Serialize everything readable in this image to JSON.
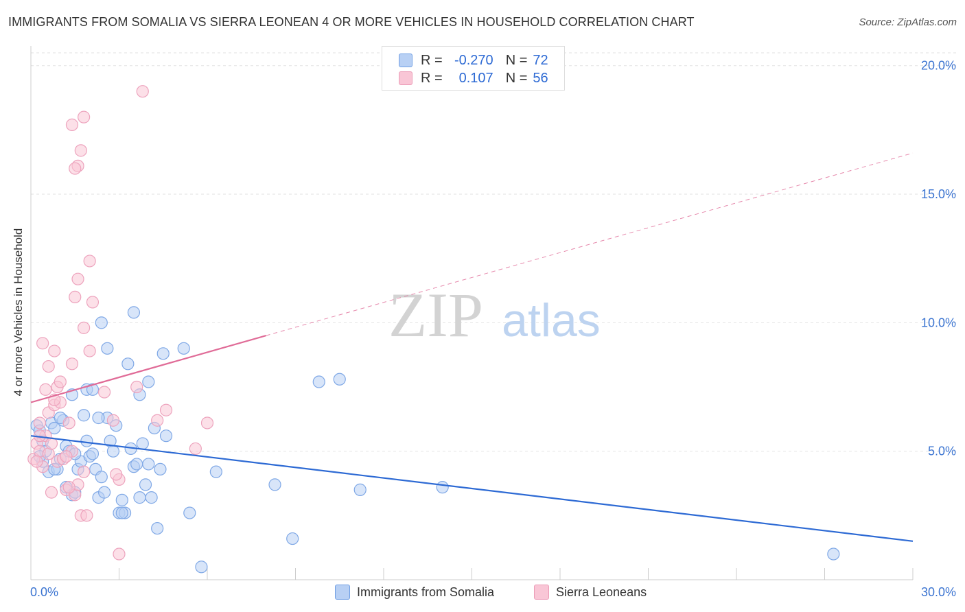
{
  "title": "IMMIGRANTS FROM SOMALIA VS SIERRA LEONEAN 4 OR MORE VEHICLES IN HOUSEHOLD CORRELATION CHART",
  "source": "Source: ZipAtlas.com",
  "watermark": {
    "zip": "ZIP",
    "atlas": "atlas"
  },
  "colors": {
    "blue": "#2d6ad4",
    "pink": "#e06b97",
    "blue_fill": "#b8d0f4",
    "pink_fill": "#f9c6d6",
    "grid": "#e2e2e2",
    "tick_label": "#3b74d1"
  },
  "legend": {
    "r_label": "R =",
    "n_label": "N =",
    "series1": {
      "r": "-0.270",
      "n": "72"
    },
    "series2": {
      "r": "0.107",
      "n": "56"
    }
  },
  "chart_data": {
    "type": "scatter",
    "xlabel": "",
    "ylabel": "4 or more Vehicles in Household",
    "xlim": [
      0,
      30
    ],
    "ylim": [
      0,
      20.5
    ],
    "x_tick_labels": [
      "0.0%",
      "30.0%"
    ],
    "y_ticks": [
      5,
      10,
      15,
      20
    ],
    "y_tick_labels": [
      "5.0%",
      "10.0%",
      "15.0%",
      "20.0%"
    ],
    "series": [
      {
        "name": "Immigrants from Somalia",
        "color": "#2d6ad4",
        "r": -0.27,
        "n": 72,
        "trend": {
          "x0": 0,
          "y0": 5.6,
          "x1": 30,
          "y1": 1.5,
          "style": "solid"
        },
        "points": [
          [
            0.2,
            6.0
          ],
          [
            0.3,
            5.8
          ],
          [
            0.4,
            5.4
          ],
          [
            0.5,
            5.0
          ],
          [
            0.4,
            4.6
          ],
          [
            0.3,
            4.8
          ],
          [
            0.6,
            4.2
          ],
          [
            0.7,
            6.1
          ],
          [
            0.8,
            5.9
          ],
          [
            0.9,
            4.3
          ],
          [
            1.0,
            4.7
          ],
          [
            1.1,
            6.2
          ],
          [
            1.2,
            5.2
          ],
          [
            1.0,
            6.3
          ],
          [
            1.3,
            5.0
          ],
          [
            1.4,
            3.3
          ],
          [
            1.5,
            3.4
          ],
          [
            1.6,
            4.3
          ],
          [
            1.7,
            4.6
          ],
          [
            1.8,
            6.4
          ],
          [
            1.9,
            5.4
          ],
          [
            2.0,
            4.8
          ],
          [
            2.1,
            4.9
          ],
          [
            2.2,
            4.3
          ],
          [
            2.3,
            3.2
          ],
          [
            2.4,
            4.0
          ],
          [
            2.5,
            3.4
          ],
          [
            2.6,
            6.3
          ],
          [
            2.7,
            5.4
          ],
          [
            2.8,
            5.0
          ],
          [
            2.9,
            6.0
          ],
          [
            3.0,
            2.6
          ],
          [
            3.1,
            3.1
          ],
          [
            3.2,
            2.6
          ],
          [
            3.3,
            8.4
          ],
          [
            3.4,
            5.1
          ],
          [
            3.5,
            4.4
          ],
          [
            3.6,
            4.5
          ],
          [
            3.7,
            3.2
          ],
          [
            3.8,
            5.3
          ],
          [
            3.9,
            3.7
          ],
          [
            4.0,
            4.5
          ],
          [
            4.1,
            3.2
          ],
          [
            4.2,
            5.9
          ],
          [
            4.3,
            2.0
          ],
          [
            4.4,
            4.3
          ],
          [
            4.6,
            5.6
          ],
          [
            2.4,
            10.0
          ],
          [
            3.5,
            10.4
          ],
          [
            2.6,
            9.0
          ],
          [
            4.5,
            8.8
          ],
          [
            5.2,
            9.0
          ],
          [
            4.0,
            7.7
          ],
          [
            3.7,
            7.2
          ],
          [
            1.9,
            7.4
          ],
          [
            2.1,
            7.4
          ],
          [
            1.4,
            7.2
          ],
          [
            5.4,
            2.6
          ],
          [
            5.8,
            0.5
          ],
          [
            6.3,
            4.2
          ],
          [
            8.3,
            3.7
          ],
          [
            8.9,
            1.6
          ],
          [
            9.8,
            7.7
          ],
          [
            10.5,
            7.8
          ],
          [
            11.2,
            3.5
          ],
          [
            14.0,
            3.6
          ],
          [
            27.3,
            1.0
          ],
          [
            2.3,
            6.3
          ],
          [
            3.1,
            2.6
          ],
          [
            1.5,
            4.9
          ],
          [
            0.8,
            4.3
          ],
          [
            1.2,
            3.6
          ]
        ]
      },
      {
        "name": "Sierra Leoneans",
        "color": "#e06b97",
        "r": 0.107,
        "n": 56,
        "trend": {
          "x0": 0,
          "y0": 6.9,
          "x1": 8.0,
          "y1": 9.5,
          "x2": 30,
          "y2": 16.6,
          "style": "solid-then-dashed"
        },
        "points": [
          [
            0.1,
            4.7
          ],
          [
            0.2,
            5.3
          ],
          [
            0.3,
            5.0
          ],
          [
            0.3,
            6.1
          ],
          [
            0.4,
            4.4
          ],
          [
            0.5,
            5.6
          ],
          [
            0.6,
            4.9
          ],
          [
            0.6,
            6.5
          ],
          [
            0.7,
            5.3
          ],
          [
            0.8,
            6.8
          ],
          [
            0.9,
            4.6
          ],
          [
            1.0,
            6.9
          ],
          [
            1.1,
            4.7
          ],
          [
            1.2,
            3.5
          ],
          [
            1.3,
            6.1
          ],
          [
            1.4,
            5.0
          ],
          [
            1.5,
            3.3
          ],
          [
            1.6,
            3.7
          ],
          [
            1.7,
            2.5
          ],
          [
            1.8,
            4.2
          ],
          [
            0.4,
            9.2
          ],
          [
            0.6,
            8.3
          ],
          [
            0.8,
            8.9
          ],
          [
            0.5,
            7.4
          ],
          [
            0.9,
            7.5
          ],
          [
            1.0,
            7.7
          ],
          [
            1.4,
            8.4
          ],
          [
            1.5,
            11.0
          ],
          [
            1.6,
            11.7
          ],
          [
            1.8,
            9.8
          ],
          [
            2.0,
            8.9
          ],
          [
            2.1,
            10.8
          ],
          [
            2.5,
            7.3
          ],
          [
            2.8,
            6.2
          ],
          [
            3.0,
            3.9
          ],
          [
            3.0,
            1.0
          ],
          [
            3.6,
            7.5
          ],
          [
            4.3,
            6.2
          ],
          [
            4.6,
            6.6
          ],
          [
            5.6,
            5.1
          ],
          [
            6.0,
            6.1
          ],
          [
            2.0,
            12.4
          ],
          [
            1.4,
            17.7
          ],
          [
            1.8,
            18.0
          ],
          [
            1.6,
            16.1
          ],
          [
            1.7,
            16.7
          ],
          [
            1.5,
            16.0
          ],
          [
            3.8,
            19.0
          ],
          [
            0.3,
            5.6
          ],
          [
            0.2,
            4.6
          ],
          [
            0.7,
            3.4
          ],
          [
            1.3,
            3.6
          ],
          [
            1.9,
            2.5
          ],
          [
            2.9,
            4.1
          ],
          [
            1.2,
            4.8
          ],
          [
            0.8,
            7.0
          ]
        ]
      }
    ]
  }
}
